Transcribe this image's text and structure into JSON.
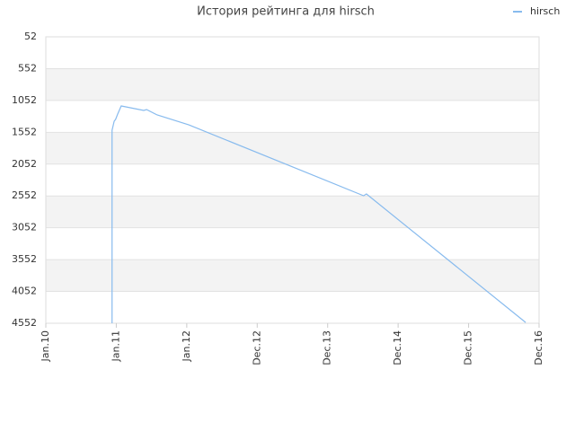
{
  "chart_data": {
    "type": "line",
    "title": "История рейтинга для hirsch",
    "x": [
      0.94,
      0.94,
      0.97,
      0.99,
      1.02,
      1.07,
      1.39,
      1.43,
      1.58,
      2.03,
      4.51,
      4.55,
      6.81
    ],
    "series": [
      {
        "name": "hirsch",
        "color": "#88bbee",
        "values": [
          4552,
          1520,
          1378,
          1350,
          1265,
          1138,
          1208,
          1195,
          1279,
          1435,
          2549,
          2521,
          4540
        ]
      }
    ],
    "xlim": [
      0,
      7
    ],
    "xticks": [
      {
        "value": 0,
        "label": "Jan.10"
      },
      {
        "value": 1,
        "label": "Jan.11"
      },
      {
        "value": 2,
        "label": "Jan.12"
      },
      {
        "value": 3,
        "label": "Dec.12"
      },
      {
        "value": 4,
        "label": "Dec.13"
      },
      {
        "value": 5,
        "label": "Dec.14"
      },
      {
        "value": 6,
        "label": "Dec.15"
      },
      {
        "value": 7,
        "label": "Dec.16"
      }
    ],
    "ylim": [
      4552,
      52
    ],
    "yticks": [
      52,
      552,
      1052,
      1552,
      2052,
      2552,
      3052,
      3552,
      4052,
      4552
    ],
    "grid": true,
    "legend": "top-right"
  }
}
